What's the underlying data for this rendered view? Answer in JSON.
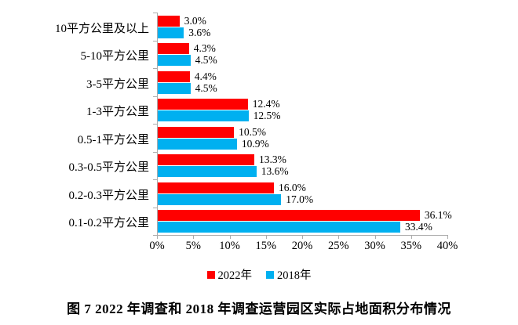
{
  "chart_data": {
    "type": "bar",
    "orientation": "horizontal",
    "title": "图 7  2022 年调查和 2018 年调查运营园区实际占地面积分布情况",
    "categories": [
      "10平方公里及以上",
      "5-10平方公里",
      "3-5平方公里",
      "1-3平方公里",
      "0.5-1平方公里",
      "0.3-0.5平方公里",
      "0.2-0.3平方公里",
      "0.1-0.2平方公里"
    ],
    "series": [
      {
        "name": "2022年",
        "color": "#FF0000",
        "values": [
          3.0,
          4.3,
          4.4,
          12.4,
          10.5,
          13.3,
          16.0,
          36.1
        ],
        "labels": [
          "3.0%",
          "4.3%",
          "4.4%",
          "12.4%",
          "10.5%",
          "13.3%",
          "16.0%",
          "36.1%"
        ]
      },
      {
        "name": "2018年",
        "color": "#00B0F0",
        "values": [
          3.6,
          4.5,
          4.5,
          12.5,
          10.9,
          13.6,
          17.0,
          33.4
        ],
        "labels": [
          "3.6%",
          "4.5%",
          "4.5%",
          "12.5%",
          "10.9%",
          "13.6%",
          "17.0%",
          "33.4%"
        ]
      }
    ],
    "xlim": [
      0,
      40
    ],
    "x_ticks": [
      "0%",
      "5%",
      "10%",
      "15%",
      "20%",
      "25%",
      "30%",
      "35%",
      "40%"
    ],
    "grid": false,
    "legend_position": "bottom",
    "axis_color": "#ABABAB",
    "data_label_color": "#000000"
  }
}
